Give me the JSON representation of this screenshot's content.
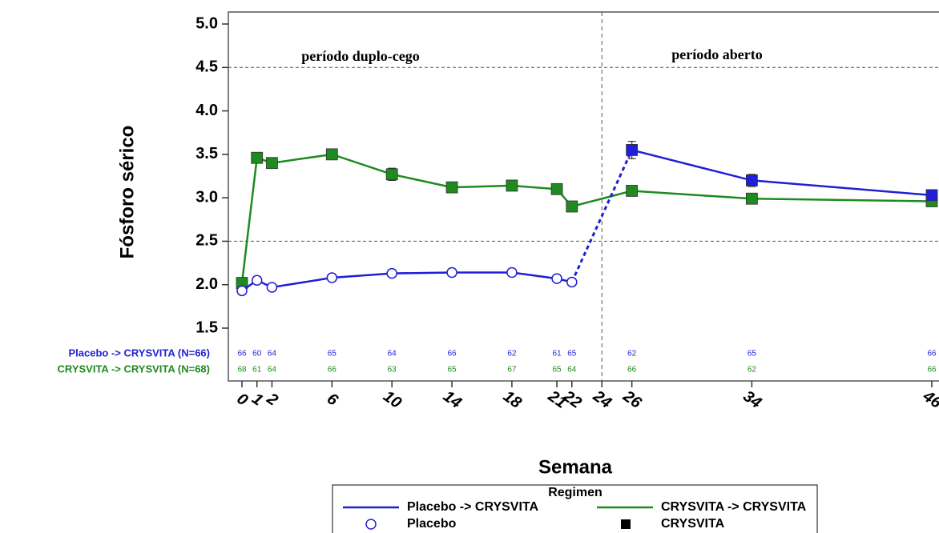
{
  "chart_data": {
    "type": "line",
    "y_label": "Fósforo sérico",
    "x_label": "Semana",
    "annotations": [
      "período duplo-cego",
      "período aberto"
    ],
    "divider_x": 24,
    "x": [
      0,
      1,
      2,
      6,
      10,
      14,
      18,
      21,
      22,
      26,
      34,
      46
    ],
    "xlim": [
      0,
      46
    ],
    "xticks": [
      0,
      1,
      2,
      6,
      10,
      14,
      18,
      21,
      22,
      24,
      26,
      34,
      46
    ],
    "ylim": [
      1.5,
      5.0
    ],
    "yticks": [
      {
        "value": 1.5,
        "label": "1.5"
      },
      {
        "value": 2,
        "label": "2.0"
      },
      2.5,
      {
        "value": 3,
        "label": "3.0"
      },
      3.5,
      {
        "value": 4,
        "label": "4.0"
      },
      4.5,
      {
        "value": 5,
        "label": "5.0"
      }
    ],
    "grid_y": [
      2.5,
      4.5
    ],
    "series": [
      {
        "name": "Placebo -> CRYSVITA",
        "n_label": "Placebo -> CRYSVITA (N=66)",
        "color": "#1f1fd6",
        "values": [
          1.93,
          2.05,
          1.97,
          2.08,
          2.13,
          2.14,
          2.14,
          2.07,
          2.03,
          3.55,
          3.2,
          3.03
        ],
        "errors": [
          0.04,
          0.04,
          0.04,
          0.04,
          0.04,
          0.04,
          0.04,
          0.04,
          0.04,
          0.1,
          0.07,
          0.05
        ],
        "markers": [
          "circle",
          "circle",
          "circle",
          "circle",
          "circle",
          "circle",
          "circle",
          "circle",
          "circle",
          "square",
          "square",
          "square"
        ],
        "dashed_between": [
          22,
          26
        ],
        "counts": [
          66,
          60,
          64,
          65,
          64,
          66,
          62,
          61,
          65,
          62,
          65,
          66
        ]
      },
      {
        "name": "CRYSVITA -> CRYSVITA",
        "n_label": "CRYSVITA -> CRYSVITA (N=68)",
        "color": "#1f8a1f",
        "values": [
          2.02,
          3.46,
          3.4,
          3.5,
          3.27,
          3.12,
          3.14,
          3.1,
          2.9,
          3.08,
          2.99,
          2.96
        ],
        "errors": [
          0.05,
          0.06,
          0.06,
          0.06,
          0.07,
          0.05,
          0.05,
          0.05,
          0.05,
          0.04,
          0.04,
          0.04
        ],
        "markers": [
          "square",
          "square",
          "square",
          "square",
          "square",
          "square",
          "square",
          "square",
          "square",
          "square",
          "square",
          "square"
        ],
        "counts": [
          68,
          61,
          64,
          66,
          63,
          65,
          67,
          65,
          64,
          66,
          62,
          66
        ]
      }
    ],
    "legend": {
      "title": "Regimen",
      "marker_entries": [
        "Placebo",
        "CRYSVITA"
      ]
    }
  }
}
